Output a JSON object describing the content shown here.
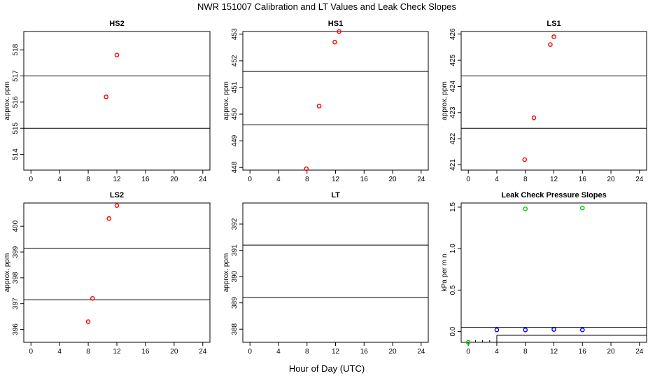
{
  "figure": {
    "title": "NWR  151007  Calibration and LT Values and Leak Check Slopes",
    "xlabel": "Hour of Day (UTC)"
  },
  "chart_data": [
    {
      "type": "scatter",
      "title": "HS2",
      "ylabel": "approx. ppm",
      "xlim": [
        -1,
        25
      ],
      "ylim": [
        513.4,
        518.7
      ],
      "xticks": [
        0,
        4,
        8,
        12,
        16,
        20,
        24
      ],
      "yticks": [
        514,
        515,
        516,
        517,
        518
      ],
      "hlines": [
        517.0,
        515.0
      ],
      "series": [
        {
          "color": "#ff0000",
          "points": [
            [
              10.5,
              516.2
            ],
            [
              12.0,
              517.8
            ]
          ]
        }
      ]
    },
    {
      "type": "scatter",
      "title": "HS1",
      "ylabel": "approx. ppm",
      "xlim": [
        -1,
        25
      ],
      "ylim": [
        447.9,
        453.1
      ],
      "xticks": [
        0,
        4,
        8,
        12,
        16,
        20,
        24
      ],
      "yticks": [
        448,
        449,
        450,
        451,
        452,
        453
      ],
      "hlines": [
        451.6,
        449.6
      ],
      "series": [
        {
          "color": "#ff0000",
          "points": [
            [
              7.9,
              447.95
            ],
            [
              9.7,
              450.3
            ],
            [
              11.9,
              452.7
            ],
            [
              12.5,
              453.1
            ]
          ]
        }
      ]
    },
    {
      "type": "scatter",
      "title": "LS1",
      "ylabel": "approx. ppm",
      "xlim": [
        -1,
        25
      ],
      "ylim": [
        420.8,
        426.1
      ],
      "xticks": [
        0,
        4,
        8,
        12,
        16,
        20,
        24
      ],
      "yticks": [
        421,
        422,
        423,
        424,
        425,
        426
      ],
      "hlines": [
        424.4,
        422.4
      ],
      "series": [
        {
          "color": "#ff0000",
          "points": [
            [
              7.9,
              421.2
            ],
            [
              9.2,
              422.8
            ],
            [
              11.5,
              425.6
            ],
            [
              12.0,
              425.9
            ]
          ]
        }
      ]
    },
    {
      "type": "scatter",
      "title": "LS2",
      "ylabel": "approx. ppm",
      "xlim": [
        -1,
        25
      ],
      "ylim": [
        395.5,
        400.9
      ],
      "xticks": [
        0,
        4,
        8,
        12,
        16,
        20,
        24
      ],
      "yticks": [
        396,
        397,
        398,
        399,
        400
      ],
      "hlines": [
        399.15,
        397.15
      ],
      "series": [
        {
          "color": "#ff0000",
          "points": [
            [
              8.0,
              396.3
            ],
            [
              8.6,
              397.2
            ],
            [
              10.9,
              400.3
            ],
            [
              12.0,
              400.8
            ]
          ]
        }
      ]
    },
    {
      "type": "scatter",
      "title": "LT",
      "ylabel": "approx. ppm",
      "xlim": [
        -1,
        25
      ],
      "ylim": [
        387.5,
        392.8
      ],
      "xticks": [
        0,
        4,
        8,
        12,
        16,
        20,
        24
      ],
      "yticks": [
        388,
        389,
        390,
        391,
        392
      ],
      "hlines": [
        391.2,
        389.2
      ],
      "series": []
    },
    {
      "type": "scatter",
      "title": "Leak Check Pressure Slopes",
      "ylabel": "kPa per m n",
      "xlim": [
        -1,
        25
      ],
      "ylim": [
        -0.13,
        1.55
      ],
      "xticks": [
        0,
        4,
        8,
        12,
        16,
        20,
        24
      ],
      "yticks": [
        0.0,
        0.5,
        1.0,
        1.5
      ],
      "ytick_labels": [
        "0.0",
        "0.5",
        "1.0",
        "1.5"
      ],
      "hlines": [
        0.05
      ],
      "series": [
        {
          "color": "#00cc00",
          "points": [
            [
              8.0,
              1.48
            ],
            [
              16.0,
              1.49
            ],
            [
              0.0,
              -0.13
            ]
          ]
        },
        {
          "color": "#0000ff",
          "points": [
            [
              4.0,
              0.02
            ],
            [
              8.0,
              0.02
            ],
            [
              12.0,
              0.025
            ],
            [
              16.0,
              0.02
            ]
          ]
        }
      ]
    }
  ]
}
